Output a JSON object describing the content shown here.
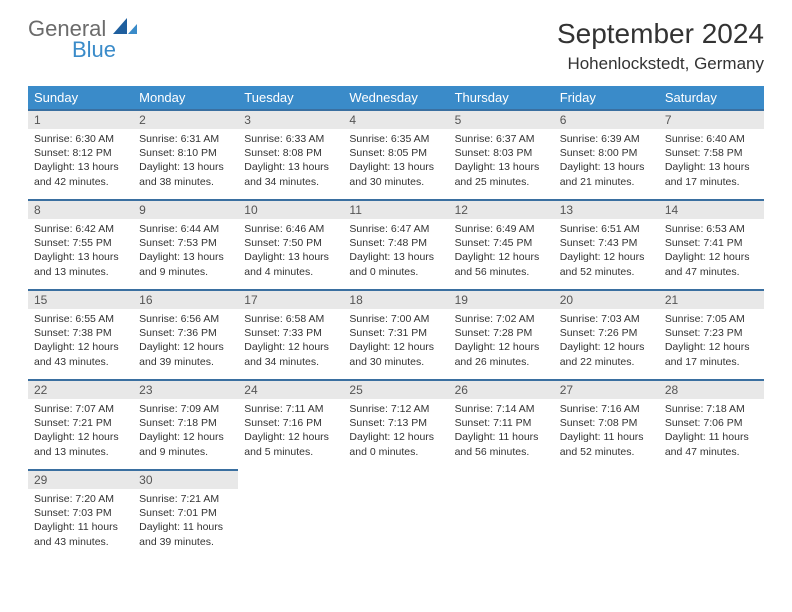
{
  "brand": {
    "general": "General",
    "blue": "Blue",
    "icon_color": "#1f5f9e"
  },
  "header": {
    "month_title": "September 2024",
    "location": "Hohenlockstedt, Germany"
  },
  "colors": {
    "header_bg": "#3a8bc9",
    "header_text": "#ffffff",
    "daynum_bg": "#e8e8e8",
    "daynum_border": "#3a6fa0",
    "body_text": "#333333"
  },
  "weekdays": [
    "Sunday",
    "Monday",
    "Tuesday",
    "Wednesday",
    "Thursday",
    "Friday",
    "Saturday"
  ],
  "days": [
    {
      "n": 1,
      "sunrise": "6:30 AM",
      "sunset": "8:12 PM",
      "daylight": "13 hours and 42 minutes."
    },
    {
      "n": 2,
      "sunrise": "6:31 AM",
      "sunset": "8:10 PM",
      "daylight": "13 hours and 38 minutes."
    },
    {
      "n": 3,
      "sunrise": "6:33 AM",
      "sunset": "8:08 PM",
      "daylight": "13 hours and 34 minutes."
    },
    {
      "n": 4,
      "sunrise": "6:35 AM",
      "sunset": "8:05 PM",
      "daylight": "13 hours and 30 minutes."
    },
    {
      "n": 5,
      "sunrise": "6:37 AM",
      "sunset": "8:03 PM",
      "daylight": "13 hours and 25 minutes."
    },
    {
      "n": 6,
      "sunrise": "6:39 AM",
      "sunset": "8:00 PM",
      "daylight": "13 hours and 21 minutes."
    },
    {
      "n": 7,
      "sunrise": "6:40 AM",
      "sunset": "7:58 PM",
      "daylight": "13 hours and 17 minutes."
    },
    {
      "n": 8,
      "sunrise": "6:42 AM",
      "sunset": "7:55 PM",
      "daylight": "13 hours and 13 minutes."
    },
    {
      "n": 9,
      "sunrise": "6:44 AM",
      "sunset": "7:53 PM",
      "daylight": "13 hours and 9 minutes."
    },
    {
      "n": 10,
      "sunrise": "6:46 AM",
      "sunset": "7:50 PM",
      "daylight": "13 hours and 4 minutes."
    },
    {
      "n": 11,
      "sunrise": "6:47 AM",
      "sunset": "7:48 PM",
      "daylight": "13 hours and 0 minutes."
    },
    {
      "n": 12,
      "sunrise": "6:49 AM",
      "sunset": "7:45 PM",
      "daylight": "12 hours and 56 minutes."
    },
    {
      "n": 13,
      "sunrise": "6:51 AM",
      "sunset": "7:43 PM",
      "daylight": "12 hours and 52 minutes."
    },
    {
      "n": 14,
      "sunrise": "6:53 AM",
      "sunset": "7:41 PM",
      "daylight": "12 hours and 47 minutes."
    },
    {
      "n": 15,
      "sunrise": "6:55 AM",
      "sunset": "7:38 PM",
      "daylight": "12 hours and 43 minutes."
    },
    {
      "n": 16,
      "sunrise": "6:56 AM",
      "sunset": "7:36 PM",
      "daylight": "12 hours and 39 minutes."
    },
    {
      "n": 17,
      "sunrise": "6:58 AM",
      "sunset": "7:33 PM",
      "daylight": "12 hours and 34 minutes."
    },
    {
      "n": 18,
      "sunrise": "7:00 AM",
      "sunset": "7:31 PM",
      "daylight": "12 hours and 30 minutes."
    },
    {
      "n": 19,
      "sunrise": "7:02 AM",
      "sunset": "7:28 PM",
      "daylight": "12 hours and 26 minutes."
    },
    {
      "n": 20,
      "sunrise": "7:03 AM",
      "sunset": "7:26 PM",
      "daylight": "12 hours and 22 minutes."
    },
    {
      "n": 21,
      "sunrise": "7:05 AM",
      "sunset": "7:23 PM",
      "daylight": "12 hours and 17 minutes."
    },
    {
      "n": 22,
      "sunrise": "7:07 AM",
      "sunset": "7:21 PM",
      "daylight": "12 hours and 13 minutes."
    },
    {
      "n": 23,
      "sunrise": "7:09 AM",
      "sunset": "7:18 PM",
      "daylight": "12 hours and 9 minutes."
    },
    {
      "n": 24,
      "sunrise": "7:11 AM",
      "sunset": "7:16 PM",
      "daylight": "12 hours and 5 minutes."
    },
    {
      "n": 25,
      "sunrise": "7:12 AM",
      "sunset": "7:13 PM",
      "daylight": "12 hours and 0 minutes."
    },
    {
      "n": 26,
      "sunrise": "7:14 AM",
      "sunset": "7:11 PM",
      "daylight": "11 hours and 56 minutes."
    },
    {
      "n": 27,
      "sunrise": "7:16 AM",
      "sunset": "7:08 PM",
      "daylight": "11 hours and 52 minutes."
    },
    {
      "n": 28,
      "sunrise": "7:18 AM",
      "sunset": "7:06 PM",
      "daylight": "11 hours and 47 minutes."
    },
    {
      "n": 29,
      "sunrise": "7:20 AM",
      "sunset": "7:03 PM",
      "daylight": "11 hours and 43 minutes."
    },
    {
      "n": 30,
      "sunrise": "7:21 AM",
      "sunset": "7:01 PM",
      "daylight": "11 hours and 39 minutes."
    }
  ],
  "labels": {
    "sunrise": "Sunrise:",
    "sunset": "Sunset:",
    "daylight": "Daylight:"
  },
  "layout": {
    "start_weekday": 0,
    "total_cells": 35
  }
}
